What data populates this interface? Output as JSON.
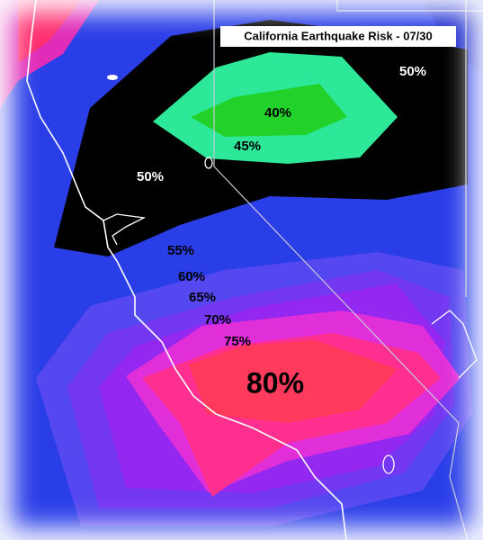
{
  "title": "California Earthquake Risk - 07/30",
  "contour_labels": [
    "50%",
    "40%",
    "45%",
    "50%",
    "55%",
    "60%",
    "65%",
    "70%",
    "75%",
    "80%"
  ]
}
